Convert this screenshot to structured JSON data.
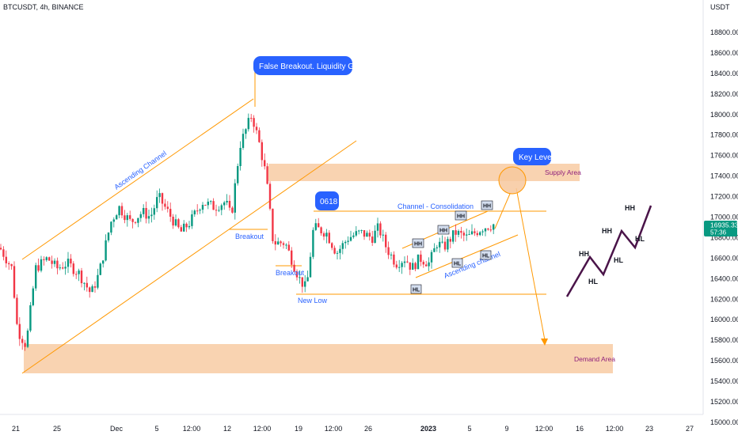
{
  "header": {
    "symbol": "BTCUSDT, 4h, BINANCE"
  },
  "price_axis": {
    "unit": "USDT",
    "ticks": [
      "18800.00",
      "18600.00",
      "18400.00",
      "18200.00",
      "18000.00",
      "17800.00",
      "17600.00",
      "17400.00",
      "17200.00",
      "17000.00",
      "16800.00",
      "16600.00",
      "16400.00",
      "16200.00",
      "16000.00",
      "15800.00",
      "15600.00",
      "15400.00",
      "15200.00",
      "15000.00"
    ],
    "current_price": "16935.33",
    "countdown": "57:36"
  },
  "time_axis": {
    "ticks": [
      "21",
      "25",
      "Dec",
      "5",
      "12:00",
      "12",
      "12:00",
      "19",
      "12:00",
      "26",
      "2023",
      "5",
      "9",
      "12:00",
      "16",
      "12:00",
      "23",
      "27"
    ]
  },
  "annotations": {
    "false_breakout": "False Breakout. Liquidity Grab",
    "ascending_channel_1": "Ascending Channel",
    "breakout_1": "Breakout",
    "breakout_2": "Breakout",
    "badge_0618": "0618",
    "channel_consolidation": "Channel - Consolidation",
    "new_low": "New Low",
    "ascending_channel_2": "Ascending channel",
    "key_level": "Key Level",
    "supply_area": "Supply Area",
    "demand_area": "Demand Area"
  },
  "structure_tags": [
    {
      "label": "HH"
    },
    {
      "label": "HH"
    },
    {
      "label": "HH"
    },
    {
      "label": "HH"
    },
    {
      "label": "HL"
    },
    {
      "label": "HL"
    },
    {
      "label": "HL"
    }
  ],
  "schematic_labels": [
    "HH",
    "HL",
    "HH",
    "HL",
    "HH",
    "HL"
  ],
  "colors": {
    "up": "#089981",
    "down": "#f23645",
    "zone": "#f7c89e",
    "orange_line": "#ff9800",
    "blue": "#2962ff",
    "purple": "#4a1449",
    "price_tag": "#089981"
  },
  "chart_data": {
    "type": "candlestick",
    "symbol": "BTCUSDT",
    "interval": "4h",
    "exchange": "BINANCE",
    "ylim": [
      15000,
      19000
    ],
    "current_price": 16935.33,
    "close_path": [
      [
        "21 Nov",
        16700
      ],
      [
        "21 Nov",
        16500
      ],
      [
        "22 Nov",
        15900
      ],
      [
        "22 Nov",
        15750
      ],
      [
        "23 Nov",
        16500
      ],
      [
        "24 Nov",
        16600
      ],
      [
        "25 Nov",
        16500
      ],
      [
        "26 Nov",
        16550
      ],
      [
        "27 Nov",
        16450
      ],
      [
        "28 Nov",
        16250
      ],
      [
        "29 Nov",
        16450
      ],
      [
        "30 Nov",
        16950
      ],
      [
        "1 Dec",
        17100
      ],
      [
        "2 Dec",
        16950
      ],
      [
        "3 Dec",
        17050
      ],
      [
        "4 Dec",
        17000
      ],
      [
        "5 Dec",
        17200
      ],
      [
        "6 Dec",
        17050
      ],
      [
        "7 Dec",
        16850
      ],
      [
        "8 Dec",
        16950
      ],
      [
        "9 Dec",
        17150
      ],
      [
        "10 Dec",
        17100
      ],
      [
        "11 Dec",
        17150
      ],
      [
        "12 Dec",
        17000
      ],
      [
        "13 Dec",
        17700
      ],
      [
        "14 Dec",
        18000
      ],
      [
        "15 Dec",
        17700
      ],
      [
        "16 Dec",
        17400
      ],
      [
        "17 Dec",
        16750
      ],
      [
        "18 Dec",
        16750
      ],
      [
        "19 Dec",
        16400
      ],
      [
        "19 Dec",
        16300
      ],
      [
        "20 Dec",
        16900
      ],
      [
        "21 Dec",
        16850
      ],
      [
        "22 Dec",
        16650
      ],
      [
        "23 Dec",
        16800
      ],
      [
        "24 Dec",
        16850
      ],
      [
        "25 Dec",
        16800
      ],
      [
        "26 Dec",
        16900
      ],
      [
        "27 Dec",
        16700
      ],
      [
        "28 Dec",
        16550
      ],
      [
        "29 Dec",
        16600
      ],
      [
        "30 Dec",
        16500
      ],
      [
        "31 Dec",
        16600
      ],
      [
        "1 Jan",
        16550
      ],
      [
        "2 Jan",
        16750
      ],
      [
        "3 Jan",
        16700
      ],
      [
        "4 Jan",
        16850
      ],
      [
        "5 Jan",
        16800
      ],
      [
        "6 Jan",
        16900
      ],
      [
        "7 Jan",
        16935
      ]
    ],
    "price_levels": {
      "false_breakout_high": 18400,
      "supply_area": [
        17350,
        17520
      ],
      "channel_consolidation_top": 17050,
      "breakout_level_1": 16900,
      "breakout_level_2": 16620,
      "new_low": 16250,
      "demand_area": [
        15500,
        15770
      ]
    }
  }
}
